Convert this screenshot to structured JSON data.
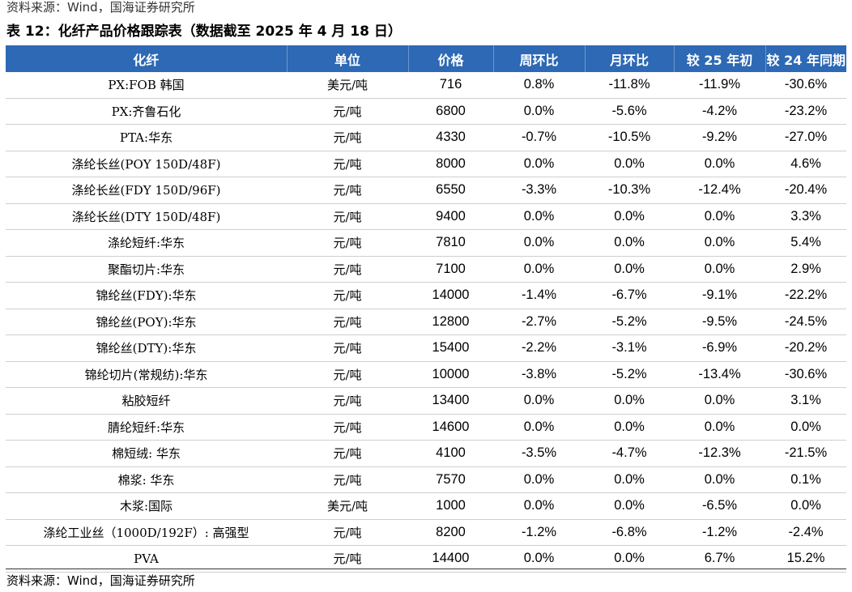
{
  "source_top": "资料来源：Wind，国海证券研究所",
  "title": "表 12：化纤产品价格跟踪表（数据截至 2025 年 4 月 18 日）",
  "headers": [
    "化纤",
    "单位",
    "价格",
    "周环比",
    "月环比",
    "较 25 年初",
    "较 24 年同期"
  ],
  "rows": [
    [
      "PX:FOB 韩国",
      "美元/吨",
      "716",
      "0.8%",
      "-11.8%",
      "-11.9%",
      "-30.6%"
    ],
    [
      "PX:齐鲁石化",
      "元/吨",
      "6800",
      "0.0%",
      "-5.6%",
      "-4.2%",
      "-23.2%"
    ],
    [
      "PTA:华东",
      "元/吨",
      "4330",
      "-0.7%",
      "-10.5%",
      "-9.2%",
      "-27.0%"
    ],
    [
      "涤纶长丝(POY 150D/48F)",
      "元/吨",
      "8000",
      "0.0%",
      "0.0%",
      "0.0%",
      "4.6%"
    ],
    [
      "涤纶长丝(FDY 150D/96F)",
      "元/吨",
      "6550",
      "-3.3%",
      "-10.3%",
      "-12.4%",
      "-20.4%"
    ],
    [
      "涤纶长丝(DTY 150D/48F)",
      "元/吨",
      "9400",
      "0.0%",
      "0.0%",
      "0.0%",
      "3.3%"
    ],
    [
      "涤纶短纤:华东",
      "元/吨",
      "7810",
      "0.0%",
      "0.0%",
      "0.0%",
      "5.4%"
    ],
    [
      "聚酯切片:华东",
      "元/吨",
      "7100",
      "0.0%",
      "0.0%",
      "0.0%",
      "2.9%"
    ],
    [
      "锦纶丝(FDY):华东",
      "元/吨",
      "14000",
      "-1.4%",
      "-6.7%",
      "-9.1%",
      "-22.2%"
    ],
    [
      "锦纶丝(POY):华东",
      "元/吨",
      "12800",
      "-2.7%",
      "-5.2%",
      "-9.5%",
      "-24.5%"
    ],
    [
      "锦纶丝(DTY):华东",
      "元/吨",
      "15400",
      "-2.2%",
      "-3.1%",
      "-6.9%",
      "-20.2%"
    ],
    [
      "锦纶切片(常规纺):华东",
      "元/吨",
      "10000",
      "-3.8%",
      "-5.2%",
      "-13.4%",
      "-30.6%"
    ],
    [
      "粘胶短纤",
      "元/吨",
      "13400",
      "0.0%",
      "0.0%",
      "0.0%",
      "3.1%"
    ],
    [
      "腈纶短纤:华东",
      "元/吨",
      "14600",
      "0.0%",
      "0.0%",
      "0.0%",
      "0.0%"
    ],
    [
      "棉短绒: 华东",
      "元/吨",
      "4100",
      "-3.5%",
      "-4.7%",
      "-12.3%",
      "-21.5%"
    ],
    [
      "棉浆: 华东",
      "元/吨",
      "7570",
      "0.0%",
      "0.0%",
      "0.0%",
      "0.1%"
    ],
    [
      "木浆:国际",
      "美元/吨",
      "1000",
      "0.0%",
      "0.0%",
      "-6.5%",
      "0.0%"
    ],
    [
      "涤纶工业丝（1000D/192F）: 高强型",
      "元/吨",
      "8200",
      "-1.2%",
      "-6.8%",
      "-1.2%",
      "-2.4%"
    ],
    [
      "PVA",
      "元/吨",
      "14400",
      "0.0%",
      "0.0%",
      "6.7%",
      "15.2%"
    ]
  ],
  "source_bottom": "资料来源：Wind，国海证券研究所",
  "colors": {
    "header_bg": "#2D69B4",
    "header_text": "#FFFFFF"
  }
}
